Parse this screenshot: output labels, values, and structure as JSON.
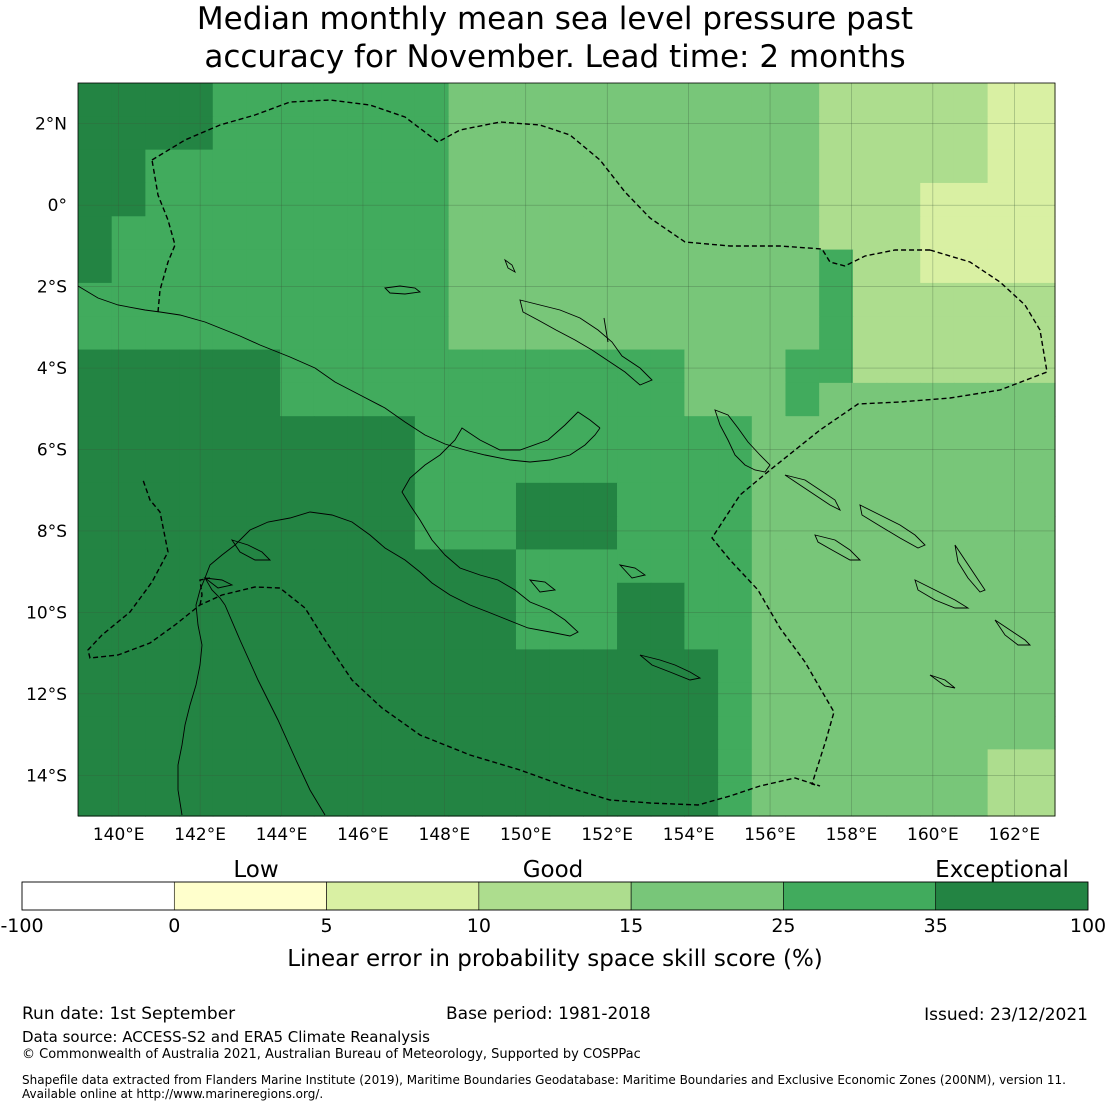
{
  "title": {
    "line1": "Median monthly mean sea level pressure past",
    "line2": "accuracy for November. Lead time: 2 months"
  },
  "axes": {
    "lon_labels": [
      "140°E",
      "142°E",
      "144°E",
      "146°E",
      "148°E",
      "150°E",
      "152°E",
      "154°E",
      "156°E",
      "158°E",
      "160°E",
      "162°E"
    ],
    "lat_labels": [
      "2°N",
      "0°",
      "2°S",
      "4°S",
      "6°S",
      "8°S",
      "10°S",
      "12°S",
      "14°S"
    ],
    "lon_values": [
      140,
      142,
      144,
      146,
      148,
      150,
      152,
      154,
      156,
      158,
      160,
      162
    ],
    "lat_values": [
      2,
      0,
      -2,
      -4,
      -6,
      -8,
      -10,
      -12,
      -14
    ],
    "lon_range": [
      139,
      163
    ],
    "lat_range": [
      -15,
      3
    ],
    "gridlines": true
  },
  "colorbar": {
    "categories": [
      "Low",
      "Good",
      "Exceptional"
    ],
    "ticks": [
      "-100",
      "0",
      "5",
      "10",
      "15",
      "25",
      "35",
      "100"
    ],
    "colors": [
      "#ffffff",
      "#ffffcc",
      "#d9f0a3",
      "#addd8e",
      "#78c679",
      "#41ab5d",
      "#238443"
    ],
    "label": "Linear error in probability space skill score (%)"
  },
  "map_data": {
    "variable": "LEPS skill score (%)",
    "legend_classes": [
      {
        "range": "-100 to 0",
        "color": "#ffffff"
      },
      {
        "range": "0 to 5",
        "color": "#ffffcc"
      },
      {
        "range": "5 to 10",
        "color": "#d9f0a3"
      },
      {
        "range": "10 to 15",
        "color": "#addd8e"
      },
      {
        "range": "15 to 25",
        "color": "#78c679"
      },
      {
        "range": "25 to 35",
        "color": "#41ab5d"
      },
      {
        "range": "35 to 100",
        "color": "#238443"
      }
    ],
    "region": "Papua New Guinea and Solomon Islands",
    "boundary": "EEZ (200NM) dashed outline"
  },
  "footer": {
    "run_date": "Run date: 1st September",
    "base_period": "Base period: 1981-2018",
    "issued": "Issued: 23/12/2021",
    "data_source": "Data source: ACCESS-S2 and ERA5 Climate Reanalysis",
    "copyright": "© Commonwealth of Australia 2021, Australian Bureau of Meteorology, Supported by COSPPac",
    "shapefile1": "Shapefile data extracted from Flanders Marine Institute (2019), Maritime Boundaries Geodatabase: Maritime Boundaries and Exclusive Economic Zones (200NM), version 11.",
    "shapefile2": "Available online at http://www.marineregions.org/."
  }
}
